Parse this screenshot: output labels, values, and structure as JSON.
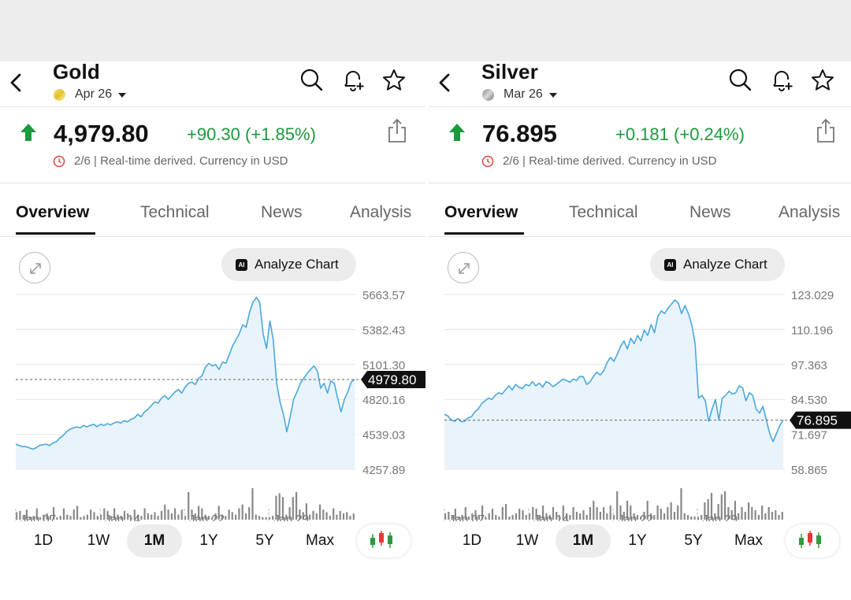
{
  "colors": {
    "up": "#1a9a3a",
    "line": "#4aa8dc",
    "fill": "#e8f3fb",
    "down_candle": "#e53935",
    "tag_bg": "#111111"
  },
  "icons": [
    "back-icon",
    "search-icon",
    "bell-plus-icon",
    "star-icon",
    "up-arrow-icon",
    "share-icon",
    "clock-icon",
    "expand-icon",
    "ai-icon",
    "candlestick-icon"
  ],
  "panels": [
    {
      "title": "Gold",
      "contract": "Apr 26",
      "price": "4,979.80",
      "change": "+90.30 (+1.85%)",
      "meta": "2/6 | Real-time derived. Currency in USD",
      "tabs": [
        "Overview",
        "Technical",
        "News",
        "Analysis"
      ],
      "analyze_label": "Analyze Chart",
      "ranges": [
        "1D",
        "1W",
        "1M",
        "1Y",
        "5Y",
        "Max"
      ],
      "active_range": "1M",
      "chart_data": {
        "type": "area",
        "y_ticks": [
          "5663.57",
          "5382.43",
          "5101.30",
          "4820.16",
          "4539.03",
          "4257.89"
        ],
        "ylim": [
          4257.89,
          5663.57
        ],
        "x_ticks": [
          "Jan 07",
          "Jan 14",
          "Jan 22",
          "Jan 29"
        ],
        "last_price_label": "4979.80",
        "last_price": 4979.8,
        "values": [
          4460,
          4450,
          4440,
          4440,
          4430,
          4420,
          4430,
          4450,
          4455,
          4460,
          4450,
          4470,
          4480,
          4510,
          4530,
          4560,
          4580,
          4590,
          4600,
          4590,
          4610,
          4600,
          4610,
          4620,
          4600,
          4620,
          4610,
          4625,
          4615,
          4630,
          4640,
          4630,
          4650,
          4640,
          4660,
          4670,
          4700,
          4680,
          4720,
          4740,
          4770,
          4800,
          4790,
          4830,
          4850,
          4820,
          4850,
          4880,
          4900,
          4870,
          4920,
          4950,
          4960,
          4940,
          4990,
          5010,
          5080,
          5110,
          5090,
          5100,
          5060,
          5120,
          5110,
          5180,
          5250,
          5300,
          5350,
          5420,
          5400,
          5520,
          5600,
          5640,
          5600,
          5350,
          5230,
          5450,
          5300,
          4950,
          4800,
          4700,
          4560,
          4680,
          4820,
          4880,
          4950,
          4990,
          5030,
          5060,
          5090,
          5050,
          4910,
          4950,
          4870,
          4970,
          4950,
          4830,
          4720,
          4820,
          4880,
          4960,
          4979.8
        ],
        "volumes": [
          6,
          7,
          3,
          8,
          2,
          3,
          9,
          2,
          4,
          5,
          3,
          10,
          2,
          3,
          9,
          4,
          3,
          8,
          11,
          2,
          3,
          4,
          8,
          6,
          3,
          4,
          9,
          7,
          3,
          9,
          4,
          3,
          7,
          5,
          2,
          8,
          4,
          3,
          9,
          5,
          4,
          6,
          3,
          7,
          12,
          8,
          5,
          9,
          4,
          8,
          3,
          22,
          8,
          5,
          11,
          9,
          4,
          3,
          2,
          5,
          11,
          4,
          3,
          8,
          6,
          4,
          9,
          12,
          5,
          10,
          25,
          4,
          3,
          2,
          2,
          2,
          3,
          19,
          21,
          18,
          4,
          10,
          18,
          22,
          8,
          6,
          13,
          4,
          7,
          5,
          12,
          8,
          6,
          3,
          9,
          4,
          7,
          5,
          6,
          3,
          5
        ]
      }
    },
    {
      "title": "Silver",
      "contract": "Mar 26",
      "price": "76.895",
      "change": "+0.181 (+0.24%)",
      "meta": "2/6 | Real-time derived. Currency in USD",
      "tabs": [
        "Overview",
        "Technical",
        "News",
        "Analysis"
      ],
      "analyze_label": "Analyze Chart",
      "ranges": [
        "1D",
        "1W",
        "1M",
        "1Y",
        "5Y",
        "Max"
      ],
      "active_range": "1M",
      "chart_data": {
        "type": "area",
        "y_ticks": [
          "123.029",
          "110.196",
          "97.363",
          "84.530",
          "71.697",
          "58.865"
        ],
        "ylim": [
          58.865,
          123.029
        ],
        "x_ticks": [
          "Jan 07",
          "Jan 14",
          "Jan 22",
          "Jan 29"
        ],
        "last_price_label": "76.895",
        "last_price": 76.895,
        "values": [
          79,
          78.5,
          77,
          76.5,
          77.5,
          76.3,
          76.5,
          77.8,
          78.2,
          80,
          81,
          83,
          84,
          85,
          84.5,
          86,
          87,
          86.5,
          88,
          89.5,
          88,
          90,
          89,
          88.5,
          90,
          89.5,
          91,
          89.5,
          90.5,
          89,
          91,
          90.5,
          89.2,
          90,
          91,
          92,
          91.5,
          90.8,
          92,
          91.5,
          93,
          92.8,
          90,
          91,
          93,
          94.5,
          93.5,
          95,
          98,
          100,
          98.5,
          101,
          104,
          106,
          103,
          107,
          105,
          108,
          106,
          110,
          108,
          112,
          109,
          115,
          117,
          116,
          118,
          119.5,
          121,
          120,
          116,
          119,
          116,
          112,
          105,
          85,
          86,
          84,
          76.5,
          81,
          84.5,
          77,
          85,
          86,
          87.5,
          86.5,
          87,
          89.5,
          88.8,
          84,
          87,
          86,
          81,
          79.5,
          82,
          77,
          72,
          69,
          72,
          75,
          76.895
        ],
        "volumes": [
          4,
          5,
          3,
          7,
          2,
          3,
          8,
          2,
          4,
          6,
          3,
          9,
          2,
          4,
          7,
          3,
          2,
          8,
          10,
          2,
          3,
          4,
          7,
          6,
          3,
          4,
          8,
          7,
          3,
          9,
          4,
          3,
          8,
          5,
          2,
          9,
          4,
          3,
          8,
          5,
          4,
          6,
          3,
          8,
          12,
          8,
          5,
          8,
          4,
          9,
          3,
          18,
          9,
          5,
          12,
          9,
          4,
          3,
          2,
          5,
          12,
          4,
          3,
          9,
          7,
          4,
          8,
          11,
          5,
          9,
          20,
          4,
          3,
          2,
          2,
          2,
          3,
          11,
          13,
          17,
          4,
          10,
          16,
          18,
          8,
          6,
          12,
          4,
          8,
          5,
          11,
          8,
          6,
          3,
          9,
          4,
          8,
          5,
          6,
          3,
          5
        ]
      }
    }
  ]
}
